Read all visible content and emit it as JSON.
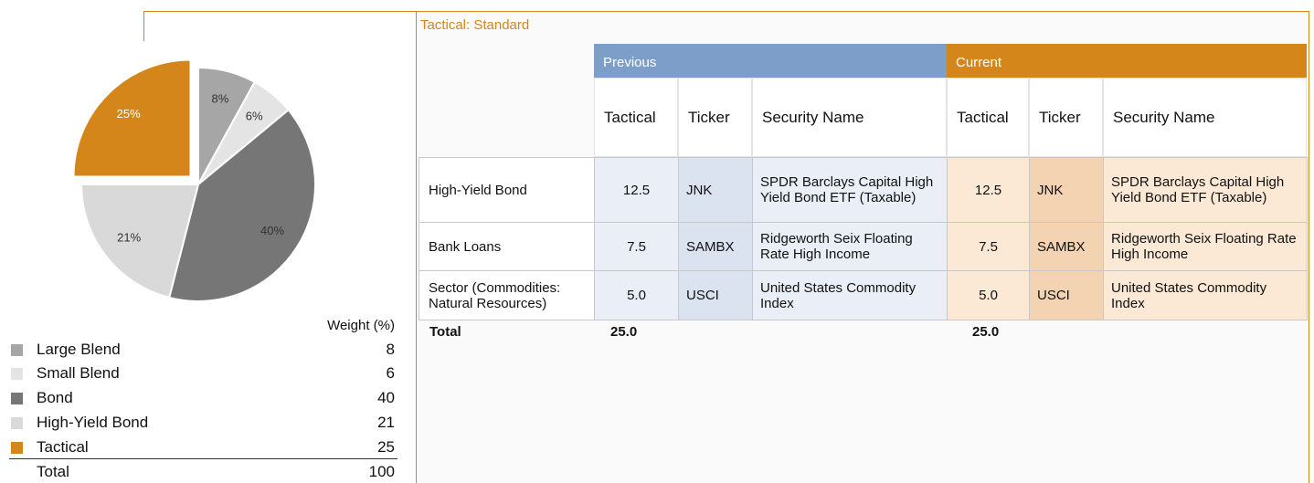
{
  "chart_data": {
    "type": "pie",
    "categories": [
      "Large Blend",
      "Small Blend",
      "Bond",
      "High-Yield Bond",
      "Tactical"
    ],
    "values": [
      8,
      6,
      40,
      21,
      25
    ],
    "value_labels": [
      "8%",
      "6%",
      "40%",
      "21%",
      "25%"
    ],
    "colors": [
      "#a6a6a6",
      "#e4e4e4",
      "#767676",
      "#d9d9d9",
      "#d4861a"
    ],
    "exploded": [
      false,
      false,
      false,
      false,
      true
    ],
    "value_header": "Weight (%)",
    "total_label": "Total",
    "total": 100
  },
  "table": {
    "title": "Tactical: Standard",
    "groups": [
      "Previous",
      "Current"
    ],
    "columns": [
      "Tactical",
      "Ticker",
      "Security Name",
      "Tactical",
      "Ticker",
      "Security Name"
    ],
    "rows": [
      [
        "High-Yield Bond",
        "12.5",
        "JNK",
        "SPDR Barclays Capital High Yield Bond ETF (Taxable)",
        "12.5",
        "JNK",
        "SPDR Barclays Capital High Yield Bond ETF (Taxable)"
      ],
      [
        "Bank Loans",
        "7.5",
        "SAMBX",
        "Ridgeworth Seix Floating Rate High Income",
        "7.5",
        "SAMBX",
        "Ridgeworth Seix Floating Rate High Income"
      ],
      [
        "Sector (Commodities: Natural Resources)",
        "5.0",
        "USCI",
        "United States Commodity Index",
        "5.0",
        "USCI",
        "United States Commodity Index"
      ]
    ],
    "total": [
      "Total",
      "25.0",
      "25.0"
    ]
  }
}
